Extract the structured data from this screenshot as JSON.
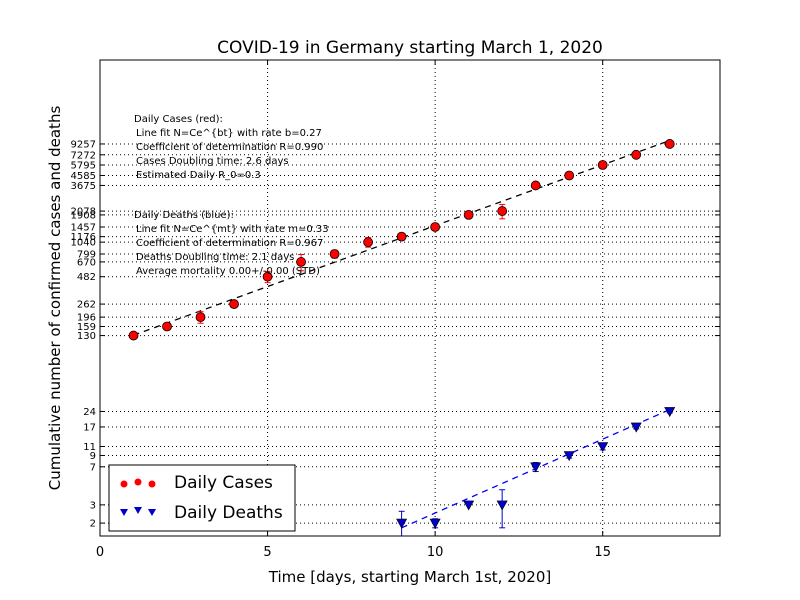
{
  "chart_data": {
    "type": "scatter",
    "title": "COVID-19 in Germany starting March 1, 2020",
    "xlabel": "Time [days, starting March 1st, 2020]",
    "ylabel": "Cumulative number of confirmed cases and deaths",
    "xlim": [
      0,
      18.5
    ],
    "yscale": "log",
    "ylim": [
      1.5,
      60000
    ],
    "xticks": [
      0,
      5,
      10,
      15
    ],
    "xtick_labels": [
      "0",
      "5",
      "10",
      "15"
    ],
    "grid": "dotted",
    "legend_position": "bottom-left",
    "series": [
      {
        "name": "Daily Cases",
        "color": "#ff0000",
        "marker": "circle",
        "x": [
          1,
          2,
          3,
          4,
          5,
          6,
          7,
          8,
          9,
          10,
          11,
          12,
          13,
          14,
          15,
          16,
          17
        ],
        "y": [
          130,
          159,
          196,
          262,
          482,
          670,
          799,
          1040,
          1176,
          1457,
          1908,
          2078,
          3675,
          4585,
          5795,
          7272,
          9257
        ],
        "errors": [
          0,
          10,
          25,
          20,
          60,
          120,
          70,
          110,
          60,
          0,
          0,
          330,
          0,
          0,
          0,
          0,
          0
        ],
        "fit_line": {
          "style": "dashed",
          "color": "#000000",
          "x": [
            1,
            17
          ],
          "y": [
            131,
            10000
          ]
        }
      },
      {
        "name": "Daily Deaths",
        "color": "#0000cc",
        "marker": "triangle-down",
        "x": [
          9,
          10,
          11,
          12,
          13,
          14,
          15,
          16,
          17
        ],
        "y": [
          2,
          2,
          3,
          3,
          7,
          9,
          11,
          17,
          24
        ],
        "errors": [
          0.6,
          0.2,
          0,
          1.2,
          0.7,
          0.5,
          0.8,
          0.7,
          0.8
        ],
        "fit_line": {
          "style": "dashed",
          "color": "#0000ff",
          "x": [
            9,
            17
          ],
          "y": [
            1.8,
            25
          ]
        }
      }
    ],
    "ytick_labels": [
      {
        "value": 2,
        "label": "2",
        "group": "deaths"
      },
      {
        "value": 3,
        "label": "3",
        "group": "deaths"
      },
      {
        "value": 7,
        "label": "7",
        "group": "deaths"
      },
      {
        "value": 9,
        "label": "9",
        "group": "deaths"
      },
      {
        "value": 11,
        "label": "11",
        "group": "deaths"
      },
      {
        "value": 17,
        "label": "17",
        "group": "deaths"
      },
      {
        "value": 24,
        "label": "24",
        "group": "deaths"
      },
      {
        "value": 130,
        "label": "130",
        "group": "cases"
      },
      {
        "value": 159,
        "label": "159",
        "group": "cases"
      },
      {
        "value": 196,
        "label": "196",
        "group": "cases"
      },
      {
        "value": 262,
        "label": "262",
        "group": "cases"
      },
      {
        "value": 482,
        "label": "482",
        "group": "cases"
      },
      {
        "value": 670,
        "label": "670",
        "group": "cases"
      },
      {
        "value": 799,
        "label": "799",
        "group": "cases"
      },
      {
        "value": 1040,
        "label": "1040",
        "group": "cases"
      },
      {
        "value": 1176,
        "label": "1176",
        "group": "cases"
      },
      {
        "value": 1457,
        "label": "1457",
        "group": "cases"
      },
      {
        "value": 1908,
        "label": "1908",
        "group": "cases"
      },
      {
        "value": 2078,
        "label": "2078",
        "group": "cases"
      },
      {
        "value": 3675,
        "label": "3675",
        "group": "cases"
      },
      {
        "value": 4585,
        "label": "4585",
        "group": "cases"
      },
      {
        "value": 5795,
        "label": "5795",
        "group": "cases"
      },
      {
        "value": 7272,
        "label": "7272",
        "group": "cases"
      },
      {
        "value": 9257,
        "label": "9257",
        "group": "cases"
      }
    ],
    "annotations": {
      "cases": [
        "Daily Cases (red):",
        "Line fit N=Ce^{bt} with rate b=0.27",
        "Coefficient of determination R=0.990",
        "Cases Doubling time: 2.6 days",
        "Estimated Daily R_0=0.3"
      ],
      "deaths": [
        "Daily Deaths (blue):",
        "Line fit N=Ce^{mt} with rate m=0.33",
        "Coefficient of determination R=0.967",
        "Deaths Doubling time: 2.1 days",
        "Average mortality 0.00+/-0.00 (STD)"
      ]
    }
  }
}
